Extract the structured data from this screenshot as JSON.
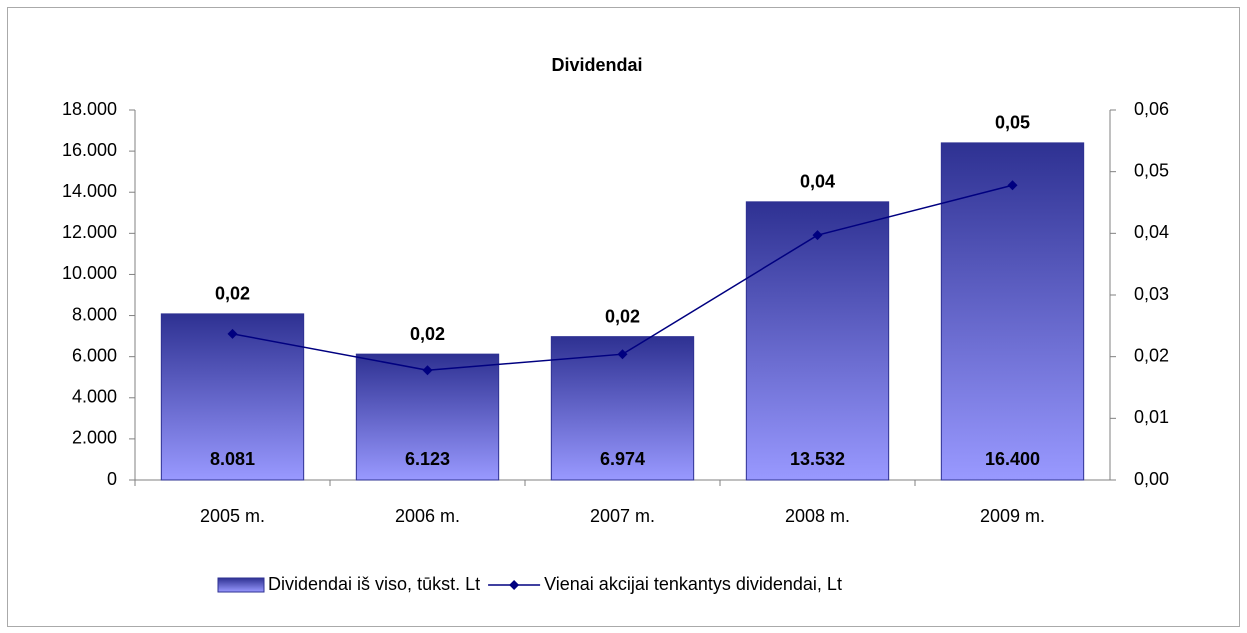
{
  "chart_data": {
    "type": "bar",
    "title": "Dividendai",
    "categories": [
      "2005 m.",
      "2006 m.",
      "2007 m.",
      "2008 m.",
      "2009 m."
    ],
    "series": [
      {
        "name": "Dividendai iš viso, tūkst. Lt",
        "type": "bar",
        "color": "#2e3192",
        "values": [
          8081,
          6123,
          6974,
          13532,
          16400
        ],
        "value_labels": [
          "8.081",
          "6.123",
          "6.974",
          "13.532",
          "16.400"
        ]
      },
      {
        "name": "Vienai akcijai tenkantys dividendai, Lt",
        "type": "line",
        "axis": "y2",
        "color": "#000080",
        "values": [
          0.0237,
          0.0178,
          0.0204,
          0.0397,
          0.0478
        ],
        "value_labels": [
          "0,02",
          "0,02",
          "0,02",
          "0,04",
          "0,05"
        ]
      }
    ],
    "ylim": [
      0,
      18000
    ],
    "yticks": [
      0,
      {
        "value": 2000,
        "label": "2.000"
      },
      {
        "value": 4000,
        "label": "4.000"
      },
      {
        "value": 6000,
        "label": "6.000"
      },
      {
        "value": 8000,
        "label": "8.000"
      },
      {
        "value": 10000,
        "label": "10.000"
      },
      {
        "value": 12000,
        "label": "12.000"
      },
      {
        "value": 14000,
        "label": "14.000"
      },
      {
        "value": 16000,
        "label": "16.000"
      },
      {
        "value": 18000,
        "label": "18.000"
      }
    ],
    "y2lim": [
      0,
      0.06
    ],
    "y2ticks": [
      {
        "value": 0,
        "label": "0,00"
      },
      {
        "value": 0.01,
        "label": "0,01"
      },
      {
        "value": 0.02,
        "label": "0,02"
      },
      {
        "value": 0.03,
        "label": "0,03"
      },
      {
        "value": 0.04,
        "label": "0,04"
      },
      {
        "value": 0.05,
        "label": "0,05"
      },
      {
        "value": 0.06,
        "label": "0,06"
      }
    ],
    "legend": "bottom",
    "grid": false
  }
}
